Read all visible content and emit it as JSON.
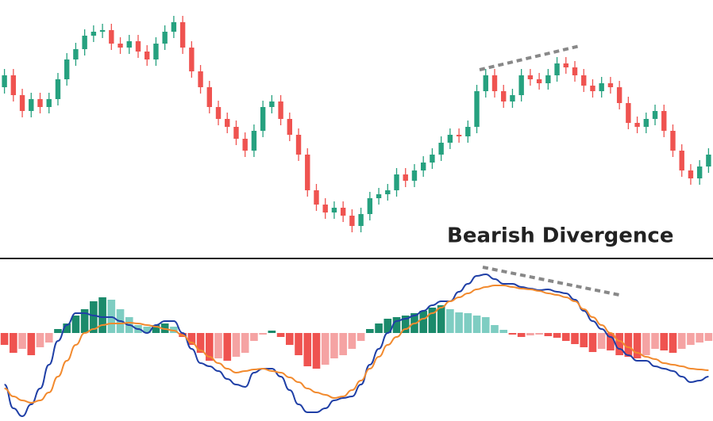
{
  "chart_data": [
    {
      "type": "candlestick",
      "annotation": "Bearish Divergence",
      "up_color": "#26a17f",
      "down_color": "#ef5350",
      "ylim": [
        0,
        320
      ],
      "open": [
        210,
        225,
        200,
        180,
        195,
        185,
        195,
        220,
        245,
        258,
        275,
        280,
        282,
        265,
        260,
        268,
        255,
        245,
        265,
        280,
        292,
        260,
        230,
        210,
        185,
        170,
        160,
        145,
        130,
        155,
        185,
        192,
        170,
        150,
        125,
        80,
        62,
        52,
        58,
        48,
        35,
        50,
        70,
        75,
        80,
        100,
        92,
        105,
        115,
        125,
        140,
        150,
        148,
        160,
        205,
        225,
        205,
        192,
        200,
        225,
        220,
        215,
        225,
        240,
        235,
        225,
        212,
        205,
        215,
        210,
        190,
        165,
        160,
        170,
        180,
        155,
        130,
        105,
        95,
        110
      ],
      "high": [
        233,
        233,
        208,
        203,
        203,
        203,
        228,
        253,
        266,
        283,
        288,
        290,
        290,
        273,
        276,
        276,
        263,
        273,
        288,
        300,
        300,
        268,
        238,
        218,
        193,
        178,
        168,
        153,
        163,
        193,
        200,
        200,
        178,
        158,
        133,
        88,
        70,
        66,
        66,
        56,
        58,
        78,
        83,
        88,
        108,
        108,
        113,
        123,
        133,
        148,
        158,
        158,
        168,
        213,
        233,
        233,
        213,
        208,
        233,
        233,
        228,
        233,
        248,
        248,
        243,
        233,
        220,
        223,
        223,
        218,
        198,
        173,
        178,
        188,
        188,
        163,
        138,
        113,
        118,
        133
      ],
      "low": [
        202,
        192,
        172,
        172,
        177,
        177,
        187,
        212,
        237,
        250,
        267,
        272,
        257,
        252,
        252,
        247,
        237,
        237,
        257,
        272,
        252,
        222,
        202,
        177,
        162,
        152,
        137,
        122,
        122,
        147,
        177,
        162,
        142,
        117,
        72,
        54,
        44,
        44,
        40,
        27,
        27,
        42,
        62,
        67,
        72,
        84,
        84,
        97,
        107,
        117,
        132,
        140,
        140,
        152,
        197,
        197,
        184,
        184,
        192,
        212,
        207,
        207,
        217,
        227,
        217,
        204,
        197,
        197,
        202,
        182,
        157,
        152,
        152,
        162,
        147,
        122,
        97,
        87,
        87,
        102
      ],
      "close": [
        225,
        200,
        180,
        195,
        185,
        195,
        220,
        245,
        258,
        275,
        280,
        282,
        265,
        260,
        268,
        255,
        245,
        265,
        280,
        292,
        260,
        230,
        210,
        185,
        170,
        160,
        145,
        130,
        155,
        185,
        192,
        170,
        150,
        125,
        80,
        62,
        52,
        58,
        48,
        35,
        50,
        70,
        75,
        80,
        100,
        92,
        105,
        115,
        125,
        140,
        150,
        148,
        160,
        205,
        225,
        205,
        192,
        200,
        225,
        220,
        215,
        225,
        240,
        235,
        225,
        212,
        205,
        215,
        210,
        190,
        165,
        160,
        170,
        180,
        155,
        130,
        105,
        95,
        110,
        125
      ]
    },
    {
      "type": "macd",
      "ylim": [
        -111,
        90
      ],
      "histogram": {
        "values": [
          -15,
          -25,
          -20,
          -28,
          -18,
          -12,
          5,
          12,
          22,
          30,
          40,
          45,
          42,
          30,
          20,
          10,
          8,
          10,
          12,
          8,
          -5,
          -15,
          -25,
          -35,
          -32,
          -35,
          -30,
          -25,
          -10,
          -2,
          3,
          -5,
          -15,
          -28,
          -42,
          -45,
          -40,
          -32,
          -28,
          -20,
          -10,
          5,
          12,
          18,
          20,
          22,
          25,
          28,
          32,
          35,
          30,
          26,
          25,
          22,
          20,
          10,
          4,
          -2,
          -5,
          -3,
          -2,
          -4,
          -6,
          -10,
          -14,
          -18,
          -24,
          -20,
          -22,
          -28,
          -30,
          -32,
          -28,
          -20,
          -22,
          -25,
          -20,
          -15,
          -12,
          -10
        ],
        "colors": {
          "positive_rising": "#1b8a6b",
          "positive_falling": "#7ecdc2",
          "negative_falling": "#ef5350",
          "negative_rising": "#f5a3a3"
        }
      },
      "series": [
        {
          "color": "#1f3fa6",
          "values": [
            -65,
            -95,
            -105,
            -90,
            -70,
            -40,
            -10,
            10,
            25,
            25,
            22,
            20,
            20,
            15,
            10,
            5,
            0,
            10,
            15,
            15,
            0,
            -20,
            -38,
            -42,
            -48,
            -58,
            -65,
            -68,
            -50,
            -45,
            -45,
            -55,
            -72,
            -90,
            -100,
            -100,
            -95,
            -85,
            -82,
            -80,
            -65,
            -40,
            -20,
            0,
            15,
            18,
            22,
            28,
            35,
            40,
            40,
            52,
            62,
            72,
            74,
            68,
            62,
            62,
            58,
            56,
            54,
            55,
            52,
            50,
            42,
            28,
            15,
            5,
            -5,
            -20,
            -28,
            -35,
            -35,
            -42,
            -45,
            -48,
            -55,
            -62,
            -60,
            -55
          ]
        },
        {
          "color": "#f28a2e",
          "values": [
            -70,
            -80,
            -85,
            -88,
            -85,
            -75,
            -55,
            -35,
            -15,
            0,
            5,
            10,
            12,
            12,
            13,
            12,
            10,
            8,
            5,
            3,
            -3,
            -12,
            -22,
            -30,
            -38,
            -45,
            -50,
            -48,
            -46,
            -45,
            -48,
            -50,
            -56,
            -62,
            -70,
            -75,
            -78,
            -82,
            -80,
            -72,
            -60,
            -45,
            -30,
            -15,
            -5,
            5,
            12,
            18,
            25,
            32,
            40,
            45,
            50,
            55,
            58,
            60,
            60,
            58,
            56,
            55,
            53,
            50,
            48,
            45,
            40,
            30,
            20,
            10,
            0,
            -10,
            -18,
            -25,
            -30,
            -33,
            -38,
            -40,
            -42,
            -45,
            -46,
            -47
          ]
        }
      ]
    }
  ]
}
